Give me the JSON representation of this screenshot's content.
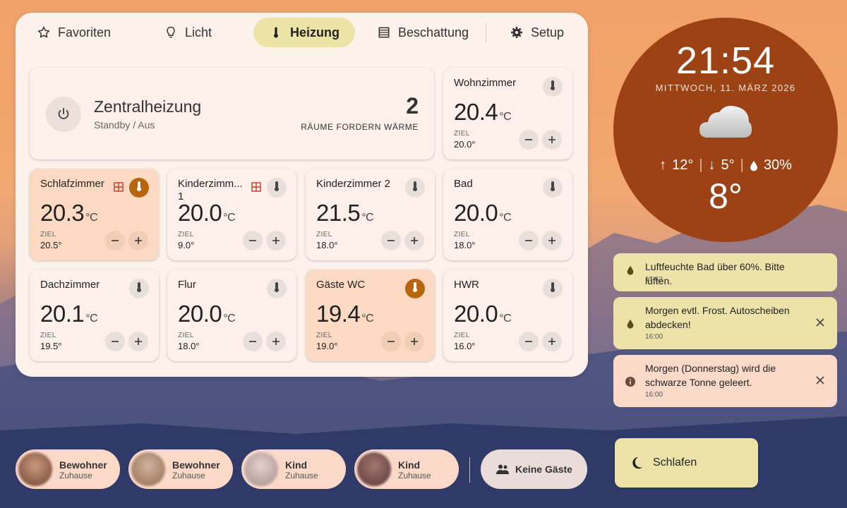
{
  "tabs": [
    {
      "label": "Favoriten",
      "icon": "star-icon",
      "active": false
    },
    {
      "label": "Licht",
      "icon": "lightbulb-icon",
      "active": false
    },
    {
      "label": "Heizung",
      "icon": "thermometer-icon",
      "active": true
    },
    {
      "label": "Beschattung",
      "icon": "blinds-icon",
      "active": false
    },
    {
      "label": "Setup",
      "icon": "gear-icon",
      "active": false
    }
  ],
  "central": {
    "title": "Zentralheizung",
    "status": "Standby / Aus",
    "count": "2",
    "count_label": "RÄUME FORDERN WÄRME"
  },
  "temp_unit": "°C",
  "ziel_label": "ZIEL",
  "rooms": [
    {
      "name": "Wohnzimmer",
      "temp": "20.4",
      "target": "20.0°",
      "heating": false,
      "window_open": false
    },
    {
      "name": "Schlafzimmer",
      "temp": "20.3",
      "target": "20.5°",
      "heating": true,
      "window_open": true
    },
    {
      "name": "Kinderzimm... 1",
      "temp": "20.0",
      "target": "9.0°",
      "heating": false,
      "window_open": true
    },
    {
      "name": "Kinderzimmer 2",
      "temp": "21.5",
      "target": "18.0°",
      "heating": false,
      "window_open": false
    },
    {
      "name": "Bad",
      "temp": "20.0",
      "target": "18.0°",
      "heating": false,
      "window_open": false
    },
    {
      "name": "Dachzimmer",
      "temp": "20.1",
      "target": "19.5°",
      "heating": false,
      "window_open": false
    },
    {
      "name": "Flur",
      "temp": "20.0",
      "target": "18.0°",
      "heating": false,
      "window_open": false
    },
    {
      "name": "Gäste WC",
      "temp": "19.4",
      "target": "19.0°",
      "heating": true,
      "window_open": false
    },
    {
      "name": "HWR",
      "temp": "20.0",
      "target": "16.0°",
      "heating": false,
      "window_open": false
    }
  ],
  "clock": {
    "time": "21:54",
    "date": "MITTWOCH, 11. MÄRZ 2026",
    "weather_icon": "cloud-icon",
    "high": "12°",
    "low": "5°",
    "precip": "30%",
    "current": "8°"
  },
  "notifications": [
    {
      "text": "Luftfeuchte Bad über 60%. Bitte lüften.",
      "time": "17:53",
      "icon": "drop-icon",
      "dismissable": false,
      "color": "#ede3a9"
    },
    {
      "text": "Morgen evtl. Frost. Autoscheiben abdecken!",
      "time": "16:00",
      "icon": "drop-icon",
      "dismissable": true,
      "color": "#ede3a9"
    },
    {
      "text": "Morgen (Donnerstag) wird die schwarze Tonne geleert.",
      "time": "16:00",
      "icon": "info-icon",
      "dismissable": true,
      "color": "#fbd9c8"
    }
  ],
  "sleep": {
    "label": "Schlafen",
    "icon": "moon-icon"
  },
  "persons": [
    {
      "name": "Bewohner",
      "state": "Zuhause"
    },
    {
      "name": "Bewohner",
      "state": "Zuhause"
    },
    {
      "name": "Kind",
      "state": "Zuhause"
    },
    {
      "name": "Kind",
      "state": "Zuhause"
    }
  ],
  "guests": {
    "label": "Keine Gäste",
    "icon": "people-icon"
  },
  "colors": {
    "panel": "#fdf1ec",
    "active_tab": "#ece4a6",
    "heating_card": "#fbd9c2",
    "heating_icon": "#b8650e",
    "clock": "#9c4214"
  }
}
